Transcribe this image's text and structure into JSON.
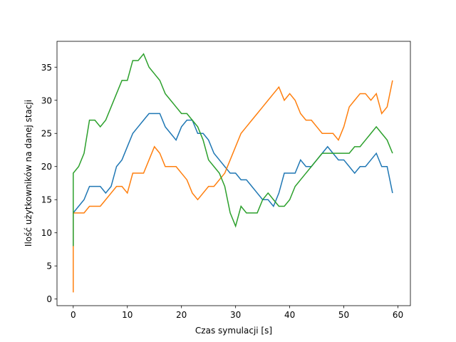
{
  "chart_data": {
    "type": "line",
    "xlabel": "Czas symulacji [s]",
    "ylabel": "Ilość użytkowników na danej stacji",
    "x": [
      0,
      0,
      1,
      2,
      3,
      4,
      5,
      6,
      7,
      8,
      9,
      10,
      11,
      12,
      13,
      14,
      15,
      16,
      17,
      18,
      19,
      20,
      21,
      22,
      23,
      24,
      25,
      26,
      27,
      28,
      29,
      30,
      31,
      32,
      33,
      34,
      35,
      36,
      37,
      38,
      39,
      40,
      41,
      42,
      43,
      44,
      45,
      46,
      47,
      48,
      49,
      50,
      51,
      52,
      53,
      54,
      55,
      56,
      57,
      58,
      59
    ],
    "series": [
      {
        "color": "#1f77b4",
        "values": [
          8,
          13,
          14,
          15,
          17,
          17,
          17,
          16,
          17,
          20,
          21,
          23,
          25,
          26,
          27,
          28,
          28,
          28,
          26,
          25,
          24,
          26,
          27,
          27,
          25,
          25,
          24,
          22,
          21,
          20,
          19,
          19,
          18,
          18,
          17,
          16,
          15,
          15,
          14,
          16,
          19,
          19,
          19,
          21,
          20,
          20,
          21,
          22,
          23,
          22,
          21,
          21,
          20,
          19,
          20,
          20,
          21,
          22,
          20,
          20,
          16
        ]
      },
      {
        "color": "#ff7f0e",
        "values": [
          1,
          13,
          13,
          13,
          14,
          14,
          14,
          15,
          16,
          17,
          17,
          16,
          19,
          19,
          19,
          21,
          23,
          22,
          20,
          20,
          20,
          19,
          18,
          16,
          15,
          16,
          17,
          17,
          18,
          19,
          21,
          23,
          25,
          26,
          27,
          28,
          29,
          30,
          31,
          32,
          30,
          31,
          30,
          28,
          27,
          27,
          26,
          25,
          25,
          25,
          24,
          26,
          29,
          30,
          31,
          31,
          30,
          31,
          28,
          29,
          33
        ]
      },
      {
        "color": "#2ca02c",
        "values": [
          8,
          19,
          20,
          22,
          27,
          27,
          26,
          27,
          29,
          31,
          33,
          33,
          36,
          36,
          37,
          35,
          34,
          33,
          31,
          30,
          29,
          28,
          28,
          27,
          26,
          24,
          21,
          20,
          19,
          17,
          13,
          11,
          14,
          13,
          13,
          13,
          15,
          16,
          15,
          14,
          14,
          15,
          17,
          18,
          19,
          20,
          21,
          22,
          22,
          22,
          22,
          22,
          22,
          23,
          23,
          24,
          25,
          26,
          25,
          24,
          22
        ]
      }
    ],
    "xlim": [
      -3,
      62.3
    ],
    "ylim": [
      -1,
      38.9
    ],
    "xticks": [
      0,
      10,
      20,
      30,
      40,
      50,
      60
    ],
    "yticks": [
      0,
      5,
      10,
      15,
      20,
      25,
      30,
      35
    ]
  }
}
